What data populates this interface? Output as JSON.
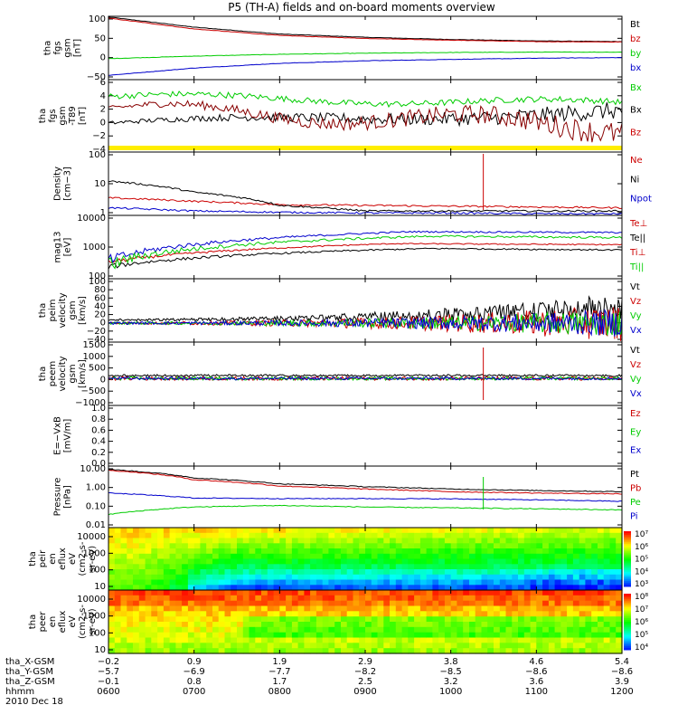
{
  "title": "P5 (TH-A) fields and on-board moments overview",
  "panels": [
    {
      "id": "fgs",
      "ylabel": [
        "tha",
        "fgs",
        "gsm",
        "[nT]"
      ],
      "ticks": [
        "100",
        "50",
        "0",
        "−50"
      ],
      "ylim": [
        -70,
        105
      ],
      "scale": "linear",
      "legend": [
        {
          "name": "Bt",
          "color": "#000000"
        },
        {
          "name": "bz",
          "color": "#cc0000"
        },
        {
          "name": "by",
          "color": "#00cc00"
        },
        {
          "name": "bx",
          "color": "#0000cc"
        }
      ]
    },
    {
      "id": "fgs-dtrnd",
      "ylabel": [
        "tha",
        "fgs",
        "gsm",
        "-T89",
        "[nT]"
      ],
      "ticks": [
        "6",
        "4",
        "2",
        "0",
        "−2",
        "−4"
      ],
      "ylim": [
        -6,
        6
      ],
      "scale": "linear",
      "legend": [
        {
          "name": "Bx",
          "color": "#00cc00"
        },
        {
          "name": "Bx",
          "color": "#000000"
        },
        {
          "name": "Bz",
          "color": "#cc0000"
        }
      ]
    },
    {
      "id": "density",
      "ylabel": [
        "Density",
        "[cm−3]"
      ],
      "ticks": [
        "100",
        "10",
        "1"
      ],
      "ylim": [
        0.6,
        200
      ],
      "scale": "log",
      "legend": [
        {
          "name": "Ne",
          "color": "#cc0000"
        },
        {
          "name": "Ni",
          "color": "#000000"
        },
        {
          "name": "Npot",
          "color": "#0000cc"
        }
      ]
    },
    {
      "id": "temperature",
      "ylabel": [
        "mag13",
        "[eV]"
      ],
      "ticks": [
        "10000",
        "1000",
        "100"
      ],
      "ylim": [
        100,
        12000
      ],
      "scale": "log",
      "legend": [
        {
          "name": "Te⊥",
          "color": "#cc0000"
        },
        {
          "name": "Te||",
          "color": "#000000"
        },
        {
          "name": "Ti⊥",
          "color": "#cc0000"
        },
        {
          "name": "Ti||",
          "color": "#00cc00"
        }
      ]
    },
    {
      "id": "peim-velocity",
      "ylabel": [
        "tha",
        "peim",
        "velocity",
        "gsm",
        "[km/s]"
      ],
      "ticks": [
        "100",
        "80",
        "60",
        "40",
        "20",
        "0",
        "−20",
        "−40"
      ],
      "ylim": [
        -45,
        105
      ],
      "scale": "linear",
      "legend": [
        {
          "name": "Vt",
          "color": "#000000"
        },
        {
          "name": "Vz",
          "color": "#cc0000"
        },
        {
          "name": "Vy",
          "color": "#00cc00"
        },
        {
          "name": "Vx",
          "color": "#0000cc"
        }
      ]
    },
    {
      "id": "peem-velocity",
      "ylabel": [
        "tha",
        "peem",
        "velocity",
        "gsm",
        "[km/s]"
      ],
      "ticks": [
        "1500",
        "1000",
        "500",
        "0",
        "−500",
        "−1000"
      ],
      "ylim": [
        -1150,
        1550
      ],
      "scale": "linear",
      "legend": [
        {
          "name": "Vt",
          "color": "#000000"
        },
        {
          "name": "Vz",
          "color": "#cc0000"
        },
        {
          "name": "Vy",
          "color": "#00cc00"
        },
        {
          "name": "Vx",
          "color": "#0000cc"
        }
      ]
    },
    {
      "id": "efield",
      "ylabel": [
        "E=−VxB",
        "[mV/m]"
      ],
      "ticks": [
        "1.0",
        "0.8",
        "0.6",
        "0.4",
        "0.2",
        "0.0"
      ],
      "ylim": [
        0,
        1
      ],
      "scale": "linear",
      "legend": [
        {
          "name": "Ez",
          "color": "#cc0000"
        },
        {
          "name": "Ey",
          "color": "#00cc00"
        },
        {
          "name": "Ex",
          "color": "#0000cc"
        }
      ]
    },
    {
      "id": "pressure",
      "ylabel": [
        "Pressure",
        "[nPa]"
      ],
      "ticks": [
        "10.00",
        "1.00",
        "0.10",
        "0.01"
      ],
      "ylim": [
        0.008,
        15
      ],
      "scale": "log",
      "legend": [
        {
          "name": "Pt",
          "color": "#000000"
        },
        {
          "name": "Pb",
          "color": "#cc0000"
        },
        {
          "name": "Pe",
          "color": "#00cc00"
        },
        {
          "name": "Pi",
          "color": "#0000cc"
        }
      ]
    },
    {
      "id": "peir-eflux",
      "ylabel": [
        "tha",
        "peir",
        "en",
        "eflux",
        "eV",
        "(cm2-s-",
        "sr-eV)"
      ],
      "ticks": [
        "10000",
        "1000",
        "100",
        "10"
      ],
      "colorbar": [
        "10⁷",
        "10⁶",
        "10⁵",
        "10⁴",
        "10³"
      ],
      "spectrogram": "ion"
    },
    {
      "id": "peer-eflux",
      "ylabel": [
        "tha",
        "peer",
        "en",
        "eflux",
        "eV",
        "(cm2-s-",
        "sr-eV)"
      ],
      "ticks": [
        "10000",
        "1000",
        "100",
        "10"
      ],
      "colorbar": [
        "10⁸",
        "10⁷",
        "10⁶",
        "10⁵",
        "10⁴"
      ],
      "spectrogram": "electron"
    }
  ],
  "footer": {
    "row_labels": [
      "tha_X-GSM",
      "tha_Y-GSM",
      "tha_Z-GSM",
      "hhmm",
      "2010 Dec 18"
    ],
    "ticks": [
      {
        "x": "−0.2",
        "y": "−5.7",
        "z": "−0.1",
        "t": "0600"
      },
      {
        "x": "0.9",
        "y": "−6.9",
        "z": "0.8",
        "t": "0700"
      },
      {
        "x": "1.9",
        "y": "−7.7",
        "z": "1.7",
        "t": "0800"
      },
      {
        "x": "2.9",
        "y": "−8.2",
        "z": "2.5",
        "t": "0900"
      },
      {
        "x": "3.8",
        "y": "−8.5",
        "z": "3.2",
        "t": "1000"
      },
      {
        "x": "4.6",
        "y": "−8.6",
        "z": "3.6",
        "t": "1100"
      },
      {
        "x": "5.4",
        "y": "−8.6",
        "z": "3.9",
        "t": "1200"
      }
    ]
  },
  "chart_data": {
    "type": "line",
    "title": "P5 (TH-A) fields and on-board moments overview",
    "x": [
      "0600",
      "0700",
      "0800",
      "0900",
      "1000",
      "1100",
      "1200"
    ],
    "xlabel": "hhmm",
    "date": "2010 Dec 18",
    "series": [
      {
        "name": "Bt",
        "values": [
          103,
          75,
          56,
          47,
          41,
          37,
          35
        ]
      },
      {
        "name": "bz",
        "values": [
          100,
          70,
          52,
          44,
          39,
          35,
          34
        ]
      },
      {
        "name": "by",
        "values": [
          -12,
          -5,
          0,
          3,
          5,
          6,
          6
        ]
      },
      {
        "name": "bx",
        "values": [
          -58,
          -38,
          -25,
          -18,
          -14,
          -11,
          -9
        ]
      },
      {
        "name": "Ni",
        "values": [
          14,
          5,
          1.5,
          0.9,
          0.9,
          0.9,
          0.9
        ]
      },
      {
        "name": "Ne",
        "values": [
          3,
          2.2,
          1.6,
          1.5,
          1.4,
          1.3,
          1.2
        ]
      },
      {
        "name": "Npot",
        "values": [
          1.2,
          0.9,
          0.8,
          0.75,
          0.75,
          0.7,
          0.7
        ]
      },
      {
        "name": "Pt",
        "values": [
          10,
          3.5,
          1.7,
          1.2,
          0.9,
          0.75,
          0.65
        ]
      },
      {
        "name": "Pb",
        "values": [
          9,
          2.8,
          1.3,
          0.9,
          0.65,
          0.55,
          0.5
        ]
      },
      {
        "name": "Pi",
        "values": [
          0.55,
          0.3,
          0.28,
          0.28,
          0.27,
          0.24,
          0.2
        ]
      },
      {
        "name": "Pe",
        "values": [
          0.04,
          0.1,
          0.12,
          0.1,
          0.09,
          0.08,
          0.07
        ]
      }
    ]
  }
}
